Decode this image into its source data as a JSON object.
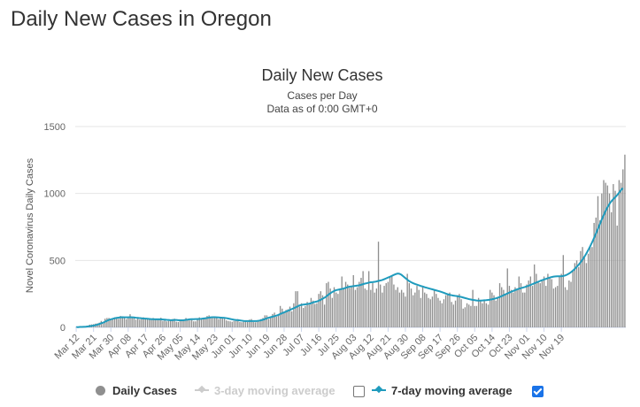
{
  "page": {
    "title": "Daily New Cases in Oregon"
  },
  "legend": {
    "daily": "Daily Cases",
    "ma3": "3-day moving average",
    "ma7": "7-day moving average",
    "ma3_checked": false,
    "ma7_checked": true
  },
  "colors": {
    "bars": "#8f8f8f",
    "line7": "#1f9bbd",
    "line3_disabled": "#cccccc"
  },
  "chart_data": {
    "type": "bar",
    "title": "Daily New Cases",
    "subtitle": [
      "Cases per Day",
      "Data as of 0:00 GMT+0"
    ],
    "ylabel": "Novel Coronavirus Daily Cases",
    "xlabel": "",
    "ylim": [
      0,
      1500
    ],
    "yticks": [
      0,
      500,
      1000,
      1500
    ],
    "grid": true,
    "legend_position": "bottom",
    "start_date": "2020-03-12",
    "xtick_labels": [
      "Mar 12",
      "Mar 21",
      "Mar 30",
      "Apr 08",
      "Apr 17",
      "Apr 26",
      "May 05",
      "May 14",
      "May 23",
      "Jun 01",
      "Jun 10",
      "Jun 19",
      "Jun 28",
      "Jul 07",
      "Jul 16",
      "Jul 25",
      "Aug 03",
      "Aug 12",
      "Aug 21",
      "Aug 30",
      "Sep 08",
      "Sep 17",
      "Sep 26",
      "Oct 05",
      "Oct 14",
      "Oct 23",
      "Nov 01",
      "Nov 10",
      "Nov 19"
    ],
    "series": [
      {
        "name": "Daily Cases",
        "type": "bar",
        "values": [
          2,
          2,
          5,
          4,
          6,
          10,
          12,
          20,
          22,
          24,
          28,
          30,
          35,
          48,
          40,
          65,
          70,
          70,
          58,
          62,
          75,
          75,
          64,
          85,
          82,
          72,
          62,
          75,
          98,
          72,
          70,
          58,
          76,
          58,
          62,
          75,
          70,
          64,
          68,
          55,
          70,
          65,
          62,
          60,
          72,
          48,
          58,
          45,
          48,
          52,
          62,
          65,
          42,
          40,
          48,
          56,
          60,
          70,
          60,
          52,
          55,
          45,
          45,
          68,
          75,
          70,
          62,
          65,
          85,
          90,
          78,
          72,
          80,
          70,
          62,
          78,
          70,
          65,
          52,
          48,
          45,
          42,
          48,
          55,
          62,
          40,
          38,
          42,
          50,
          40,
          58,
          62,
          40,
          38,
          48,
          55,
          62,
          70,
          90,
          90,
          62,
          80,
          100,
          110,
          80,
          95,
          160,
          140,
          110,
          130,
          135,
          155,
          120,
          180,
          270,
          270,
          155,
          180,
          145,
          160,
          190,
          170,
          220,
          200,
          175,
          180,
          250,
          270,
          240,
          170,
          330,
          340,
          290,
          220,
          300,
          260,
          250,
          280,
          380,
          295,
          340,
          320,
          295,
          310,
          390,
          280,
          300,
          340,
          370,
          420,
          290,
          280,
          420,
          280,
          330,
          260,
          290,
          640,
          320,
          260,
          310,
          330,
          340,
          380,
          390,
          320,
          280,
          300,
          260,
          280,
          260,
          230,
          400,
          330,
          290,
          240,
          260,
          310,
          280,
          220,
          300,
          260,
          250,
          220,
          210,
          230,
          280,
          250,
          220,
          200,
          180,
          210,
          240,
          250,
          260,
          190,
          170,
          200,
          240,
          250,
          210,
          140,
          150,
          180,
          170,
          160,
          280,
          160,
          160,
          220,
          200,
          180,
          200,
          180,
          170,
          280,
          260,
          240,
          200,
          220,
          330,
          300,
          280,
          250,
          440,
          310,
          280,
          260,
          300,
          290,
          380,
          330,
          260,
          260,
          320,
          350,
          380,
          310,
          470,
          400,
          340,
          330,
          350,
          380,
          310,
          400,
          370,
          360,
          290,
          300,
          310,
          380,
          400,
          540,
          300,
          280,
          350,
          340,
          420,
          480,
          500,
          450,
          570,
          600,
          520,
          480,
          550,
          600,
          600,
          780,
          820,
          980,
          800,
          1000,
          1100,
          1080,
          1060,
          1000,
          860,
          1070,
          1020,
          760,
          1100,
          1080,
          1180,
          1290
        ]
      },
      {
        "name": "7-day moving average",
        "type": "line",
        "values": [
          2,
          2,
          3,
          3,
          4,
          5,
          7,
          9,
          11,
          13,
          17,
          20,
          25,
          31,
          35,
          42,
          49,
          56,
          60,
          64,
          68,
          71,
          73,
          75,
          76,
          75,
          75,
          75,
          76,
          75,
          74,
          72,
          71,
          69,
          68,
          66,
          65,
          64,
          63,
          61,
          61,
          60,
          60,
          60,
          60,
          59,
          58,
          56,
          55,
          54,
          54,
          55,
          55,
          54,
          53,
          53,
          54,
          56,
          58,
          60,
          61,
          61,
          62,
          62,
          63,
          64,
          66,
          68,
          70,
          73,
          75,
          76,
          76,
          75,
          74,
          73,
          72,
          71,
          69,
          66,
          63,
          60,
          57,
          55,
          54,
          52,
          50,
          48,
          47,
          47,
          47,
          47,
          47,
          47,
          48,
          50,
          53,
          57,
          62,
          67,
          72,
          76,
          80,
          84,
          88,
          93,
          100,
          106,
          112,
          118,
          124,
          130,
          137,
          143,
          150,
          157,
          164,
          168,
          170,
          172,
          174,
          177,
          180,
          186,
          190,
          193,
          199,
          206,
          214,
          222,
          232,
          244,
          255,
          264,
          272,
          278,
          281,
          284,
          287,
          290,
          295,
          300,
          304,
          306,
          308,
          310,
          312,
          314,
          318,
          323,
          327,
          330,
          334,
          337,
          338,
          340,
          343,
          347,
          350,
          354,
          360,
          366,
          372,
          378,
          385,
          392,
          398,
          402,
          400,
          392,
          380,
          368,
          356,
          345,
          337,
          330,
          324,
          319,
          314,
          309,
          305,
          300,
          296,
          292,
          288,
          284,
          280,
          276,
          272,
          268,
          263,
          258,
          252,
          247,
          243,
          240,
          237,
          235,
          233,
          230,
          227,
          223,
          219,
          215,
          211,
          208,
          205,
          203,
          201,
          200,
          200,
          201,
          202,
          203,
          205,
          207,
          210,
          213,
          217,
          222,
          227,
          233,
          240,
          247,
          253,
          260,
          266,
          272,
          278,
          284,
          289,
          293,
          297,
          301,
          306,
          311,
          317,
          323,
          329,
          335,
          341,
          347,
          352,
          357,
          362,
          367,
          372,
          376,
          379,
          381,
          382,
          382,
          382,
          384,
          388,
          394,
          402,
          412,
          424,
          437,
          452,
          468,
          486,
          506,
          528,
          552,
          578,
          606,
          636,
          668,
          702,
          736,
          770,
          805,
          838,
          870,
          898,
          922,
          942,
          958,
          972,
          988,
          1006,
          1025,
          1040
        ]
      }
    ]
  }
}
